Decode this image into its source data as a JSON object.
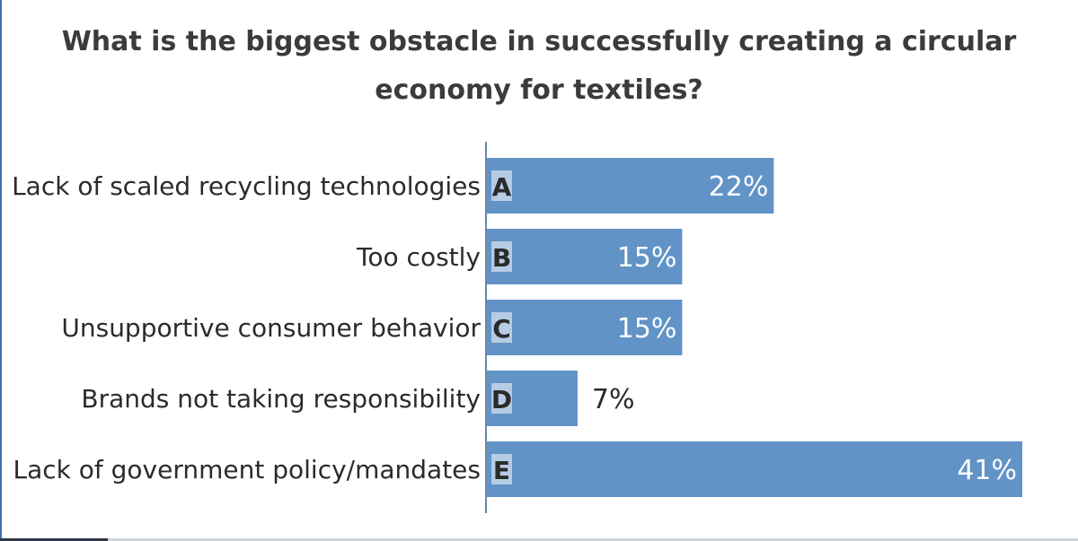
{
  "chart_data": {
    "type": "bar",
    "orientation": "horizontal",
    "title": "What is the biggest obstacle in successfully creating a circular economy for textiles?",
    "categories": [
      "Lack of scaled recycling technologies",
      "Too costly",
      "Unsupportive consumer behavior",
      "Brands not taking responsibility",
      "Lack of government policy/mandates"
    ],
    "letters": [
      "A",
      "B",
      "C",
      "D",
      "E"
    ],
    "values": [
      22,
      15,
      15,
      7,
      41
    ],
    "value_labels": [
      "22%",
      "15%",
      "15%",
      "7%",
      "41%"
    ],
    "xlim": [
      0,
      41
    ],
    "grid": false,
    "colors": {
      "bar": "#6193c7",
      "letter_box": "#b6cce4",
      "text": "#2b2b2b",
      "label_inside": "#ffffff",
      "axis": "#6b88a8"
    }
  }
}
